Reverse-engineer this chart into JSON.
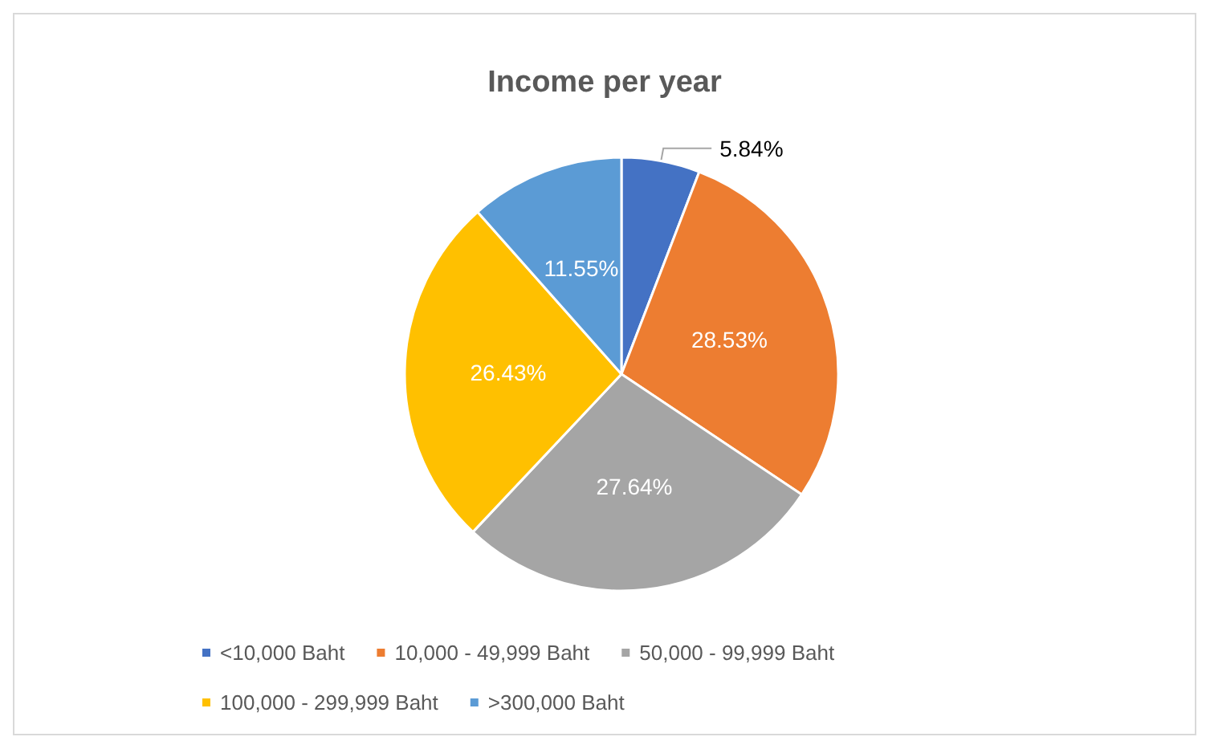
{
  "chart_data": {
    "type": "pie",
    "title": "Income per year",
    "categories": [
      "<10,000 Baht",
      "10,000 - 49,999 Baht",
      "50,000 - 99,999 Baht",
      "100,000 - 299,999 Baht",
      ">300,000 Baht"
    ],
    "values": [
      5.84,
      28.53,
      27.64,
      26.43,
      11.55
    ],
    "colors": [
      "#4472c4",
      "#ed7d31",
      "#a5a5a5",
      "#ffc000",
      "#5b9bd5"
    ],
    "value_labels": [
      "5.84%",
      "28.53%",
      "27.64%",
      "26.43%",
      "11.55%"
    ],
    "legend": "bottom"
  }
}
